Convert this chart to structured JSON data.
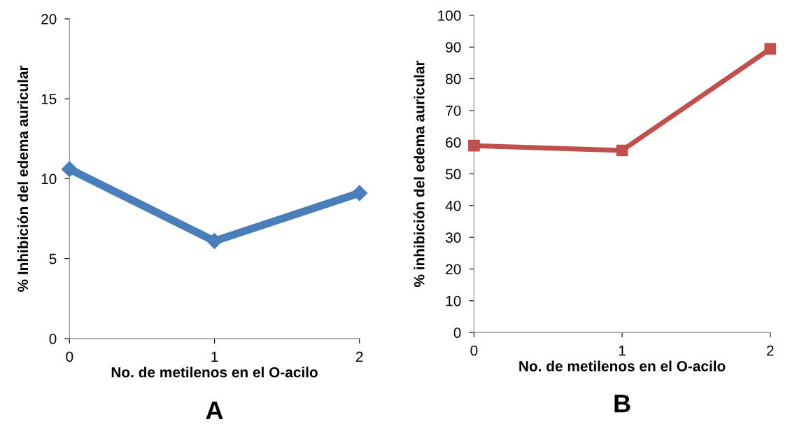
{
  "chart_data": [
    {
      "type": "line",
      "title": "A",
      "xlabel": "No. de metilenos en el O-acilo",
      "ylabel": "% Inhibición del edema auricular",
      "x": [
        0,
        1,
        2
      ],
      "xlim": [
        0,
        2
      ],
      "xticks": [
        0,
        1,
        2
      ],
      "ylim": [
        0,
        20
      ],
      "yticks": [
        0,
        5,
        10,
        15,
        20
      ],
      "grid": false,
      "legend": false,
      "marker": "diamond",
      "line_style": "solid",
      "series": [
        {
          "color": "#4a7ebb",
          "values": [
            10.6,
            6.1,
            9.1
          ]
        }
      ]
    },
    {
      "type": "line",
      "title": "B",
      "xlabel": "No. de metilenos en el O-acilo",
      "ylabel": "% inhibición del edema auricular",
      "x": [
        0,
        1,
        2
      ],
      "xlim": [
        0,
        2
      ],
      "xticks": [
        0,
        1,
        2
      ],
      "ylim": [
        0,
        100
      ],
      "yticks": [
        0,
        10,
        20,
        30,
        40,
        50,
        60,
        70,
        80,
        90,
        100
      ],
      "grid": false,
      "legend": false,
      "marker": "square",
      "line_style": "solid",
      "series": [
        {
          "color": "#c0504d",
          "values": [
            58.9,
            57.4,
            89.4
          ]
        }
      ]
    }
  ]
}
